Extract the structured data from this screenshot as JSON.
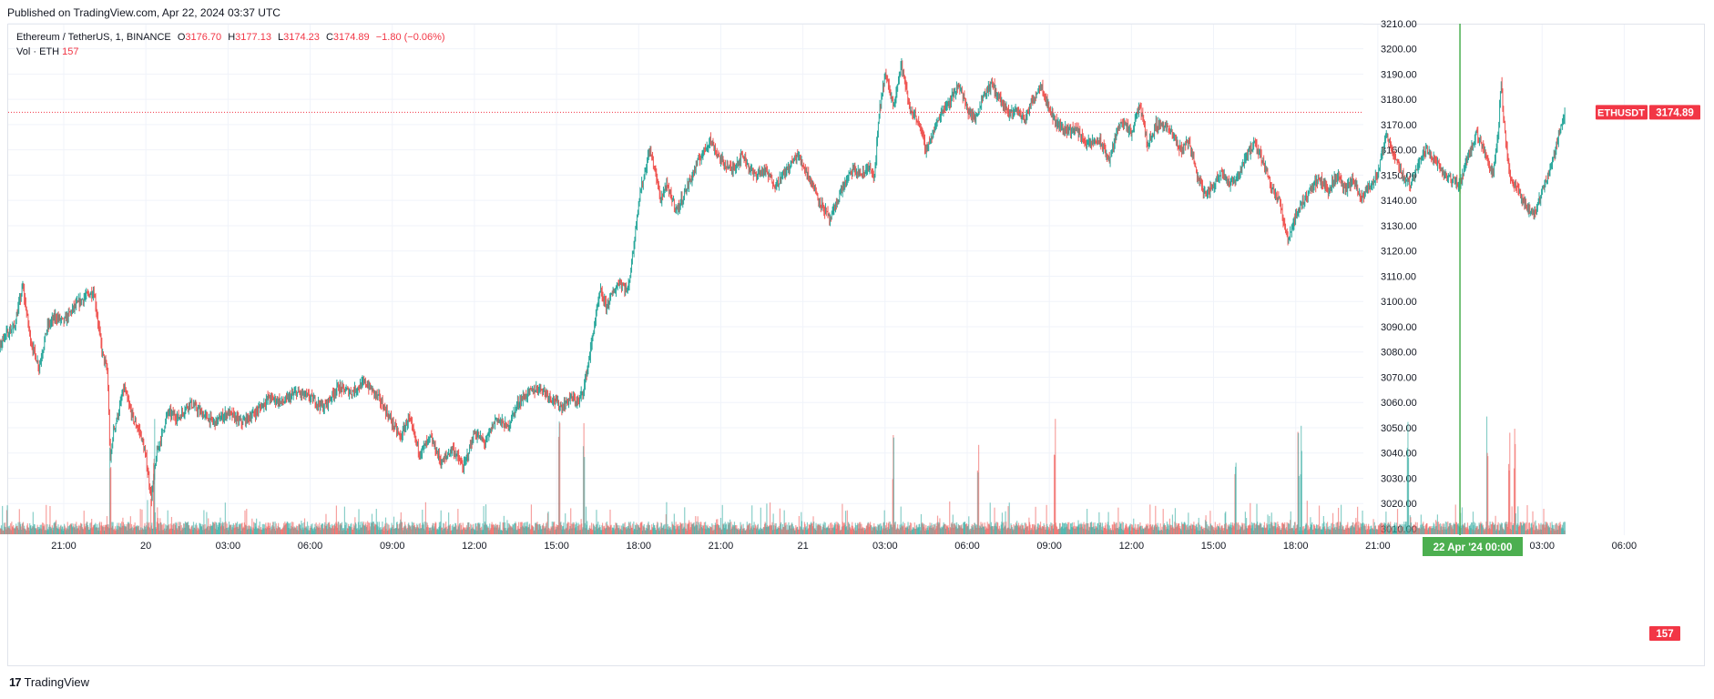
{
  "published": "Published on TradingView.com, Apr 22, 2024 03:37 UTC",
  "legend": {
    "symbol": "Ethereum / TetherUS, 1, BINANCE",
    "o_label": "O",
    "o_value": "3176.70",
    "h_label": "H",
    "h_value": "3177.13",
    "l_label": "L",
    "l_value": "3174.23",
    "c_label": "C",
    "c_value": "3174.89",
    "change": "−1.80 (−0.06%)"
  },
  "vol_legend": {
    "label": "Vol · ETH",
    "value": "157"
  },
  "price_tag": {
    "symbol": "ETHUSDT",
    "value": "3174.89"
  },
  "vol_tag": "157",
  "crosshair_label": "22 Apr '24   00:00",
  "footer": {
    "logo": "17",
    "brand": "TradingView"
  },
  "colors": {
    "up": "#26a69a",
    "down": "#ef5350",
    "tag": "#f23645",
    "crosshair": "#4caf50",
    "grid": "#f0f3fa"
  },
  "chart_data": {
    "type": "candlestick",
    "title": "Ethereum / TetherUS, 1, BINANCE",
    "interval": "1",
    "y_ticks": [
      3010,
      3020,
      3030,
      3040,
      3050,
      3060,
      3070,
      3080,
      3090,
      3100,
      3110,
      3120,
      3130,
      3140,
      3150,
      3160,
      3170,
      3180,
      3190,
      3200,
      3210
    ],
    "y_tick_labels": [
      "3010.00",
      "3020.00",
      "3030.00",
      "3040.00",
      "3050.00",
      "3060.00",
      "3070.00",
      "3080.00",
      "3090.00",
      "3100.00",
      "3110.00",
      "3120.00",
      "3130.00",
      "3140.00",
      "3150.00",
      "3160.00",
      "3170.00",
      "3180.00",
      "3190.00",
      "3200.00",
      "3210.00"
    ],
    "x_tick_labels": [
      "21:00",
      "20",
      "03:00",
      "06:00",
      "09:00",
      "12:00",
      "15:00",
      "18:00",
      "21:00",
      "21",
      "03:00",
      "06:00",
      "09:00",
      "12:00",
      "15:00",
      "18:00",
      "21:00",
      "",
      "03:00",
      "06:00"
    ],
    "x_tick_hours": [
      21,
      24,
      27,
      30,
      33,
      36,
      39,
      42,
      45,
      48,
      51,
      54,
      57,
      60,
      63,
      66,
      69,
      72,
      75,
      78
    ],
    "x_tick_note": "hours since Apr 19 00:00 UTC",
    "price_path": [
      [
        18.0,
        3080
      ],
      [
        18.4,
        3074
      ],
      [
        18.8,
        3086
      ],
      [
        19.2,
        3090
      ],
      [
        19.5,
        3106
      ],
      [
        19.8,
        3084
      ],
      [
        20.1,
        3074
      ],
      [
        20.4,
        3090
      ],
      [
        20.7,
        3094
      ],
      [
        21.0,
        3092
      ],
      [
        21.4,
        3098
      ],
      [
        21.8,
        3102
      ],
      [
        22.1,
        3104
      ],
      [
        22.4,
        3080
      ],
      [
        22.6,
        3072
      ],
      [
        22.7,
        3036
      ],
      [
        22.8,
        3048
      ],
      [
        23.0,
        3056
      ],
      [
        23.2,
        3066
      ],
      [
        23.4,
        3058
      ],
      [
        23.6,
        3052
      ],
      [
        23.8,
        3048
      ],
      [
        24.0,
        3038
      ],
      [
        24.2,
        3022
      ],
      [
        24.4,
        3040
      ],
      [
        24.6,
        3048
      ],
      [
        24.8,
        3056
      ],
      [
        25.2,
        3054
      ],
      [
        25.6,
        3060
      ],
      [
        26.0,
        3056
      ],
      [
        26.5,
        3052
      ],
      [
        27.0,
        3056
      ],
      [
        27.5,
        3052
      ],
      [
        28.0,
        3056
      ],
      [
        28.5,
        3062
      ],
      [
        29.0,
        3060
      ],
      [
        29.5,
        3064
      ],
      [
        30.0,
        3062
      ],
      [
        30.5,
        3058
      ],
      [
        31.0,
        3066
      ],
      [
        31.5,
        3064
      ],
      [
        32.0,
        3068
      ],
      [
        32.5,
        3062
      ],
      [
        33.0,
        3052
      ],
      [
        33.3,
        3046
      ],
      [
        33.6,
        3054
      ],
      [
        34.0,
        3040
      ],
      [
        34.4,
        3046
      ],
      [
        34.8,
        3036
      ],
      [
        35.2,
        3042
      ],
      [
        35.6,
        3034
      ],
      [
        36.0,
        3048
      ],
      [
        36.4,
        3044
      ],
      [
        36.8,
        3054
      ],
      [
        37.2,
        3050
      ],
      [
        37.6,
        3060
      ],
      [
        38.0,
        3064
      ],
      [
        38.4,
        3066
      ],
      [
        38.8,
        3062
      ],
      [
        39.2,
        3058
      ],
      [
        39.5,
        3062
      ],
      [
        39.8,
        3060
      ],
      [
        40.0,
        3066
      ],
      [
        40.2,
        3078
      ],
      [
        40.4,
        3092
      ],
      [
        40.6,
        3104
      ],
      [
        40.8,
        3098
      ],
      [
        41.0,
        3102
      ],
      [
        41.3,
        3108
      ],
      [
        41.6,
        3104
      ],
      [
        41.8,
        3120
      ],
      [
        42.0,
        3140
      ],
      [
        42.2,
        3150
      ],
      [
        42.4,
        3160
      ],
      [
        42.6,
        3152
      ],
      [
        42.8,
        3140
      ],
      [
        43.0,
        3146
      ],
      [
        43.4,
        3136
      ],
      [
        43.8,
        3146
      ],
      [
        44.2,
        3156
      ],
      [
        44.6,
        3164
      ],
      [
        45.0,
        3156
      ],
      [
        45.4,
        3152
      ],
      [
        45.8,
        3158
      ],
      [
        46.2,
        3150
      ],
      [
        46.6,
        3152
      ],
      [
        47.0,
        3146
      ],
      [
        47.4,
        3152
      ],
      [
        47.8,
        3158
      ],
      [
        48.2,
        3150
      ],
      [
        48.6,
        3140
      ],
      [
        49.0,
        3132
      ],
      [
        49.4,
        3144
      ],
      [
        49.8,
        3152
      ],
      [
        50.2,
        3150
      ],
      [
        50.4,
        3154
      ],
      [
        50.6,
        3148
      ],
      [
        50.8,
        3176
      ],
      [
        51.0,
        3190
      ],
      [
        51.3,
        3178
      ],
      [
        51.6,
        3194
      ],
      [
        51.9,
        3176
      ],
      [
        52.2,
        3172
      ],
      [
        52.5,
        3160
      ],
      [
        52.8,
        3168
      ],
      [
        53.1,
        3176
      ],
      [
        53.4,
        3180
      ],
      [
        53.7,
        3186
      ],
      [
        54.0,
        3176
      ],
      [
        54.3,
        3172
      ],
      [
        54.6,
        3182
      ],
      [
        54.9,
        3186
      ],
      [
        55.2,
        3180
      ],
      [
        55.5,
        3174
      ],
      [
        55.8,
        3176
      ],
      [
        56.1,
        3172
      ],
      [
        56.4,
        3180
      ],
      [
        56.7,
        3186
      ],
      [
        57.0,
        3176
      ],
      [
        57.3,
        3170
      ],
      [
        57.6,
        3168
      ],
      [
        58.0,
        3168
      ],
      [
        58.4,
        3162
      ],
      [
        58.8,
        3164
      ],
      [
        59.2,
        3156
      ],
      [
        59.6,
        3172
      ],
      [
        60.0,
        3166
      ],
      [
        60.3,
        3178
      ],
      [
        60.6,
        3162
      ],
      [
        60.9,
        3170
      ],
      [
        61.2,
        3170
      ],
      [
        61.5,
        3166
      ],
      [
        61.8,
        3160
      ],
      [
        62.1,
        3164
      ],
      [
        62.4,
        3150
      ],
      [
        62.7,
        3142
      ],
      [
        63.0,
        3146
      ],
      [
        63.3,
        3152
      ],
      [
        63.6,
        3146
      ],
      [
        63.9,
        3150
      ],
      [
        64.2,
        3158
      ],
      [
        64.5,
        3162
      ],
      [
        64.8,
        3156
      ],
      [
        65.1,
        3146
      ],
      [
        65.4,
        3140
      ],
      [
        65.7,
        3124
      ],
      [
        66.0,
        3134
      ],
      [
        66.3,
        3140
      ],
      [
        66.6,
        3146
      ],
      [
        66.9,
        3148
      ],
      [
        67.2,
        3144
      ],
      [
        67.5,
        3150
      ],
      [
        67.8,
        3144
      ],
      [
        68.1,
        3148
      ],
      [
        68.4,
        3140
      ],
      [
        68.7,
        3146
      ],
      [
        69.0,
        3150
      ],
      [
        69.3,
        3166
      ],
      [
        69.6,
        3158
      ],
      [
        69.9,
        3150
      ],
      [
        70.2,
        3146
      ],
      [
        70.5,
        3156
      ],
      [
        70.8,
        3160
      ],
      [
        71.1,
        3156
      ],
      [
        71.4,
        3150
      ],
      [
        71.7,
        3148
      ],
      [
        72.0,
        3146
      ],
      [
        72.3,
        3158
      ],
      [
        72.6,
        3166
      ],
      [
        72.9,
        3160
      ],
      [
        73.2,
        3150
      ],
      [
        73.4,
        3168
      ],
      [
        73.5,
        3188
      ],
      [
        73.6,
        3172
      ],
      [
        73.8,
        3150
      ],
      [
        74.1,
        3144
      ],
      [
        74.4,
        3138
      ],
      [
        74.7,
        3134
      ],
      [
        75.0,
        3144
      ],
      [
        75.3,
        3152
      ],
      [
        75.6,
        3166
      ],
      [
        75.85,
        3174.89
      ]
    ],
    "volume_spikes_hours": [
      22.7,
      24.3,
      39.1,
      40.0,
      51.3,
      54.4,
      57.2,
      63.8,
      66.1,
      66.2,
      70.1,
      73.0,
      73.8,
      74.0
    ],
    "last_price": 3174.89,
    "last_volume": 157
  }
}
